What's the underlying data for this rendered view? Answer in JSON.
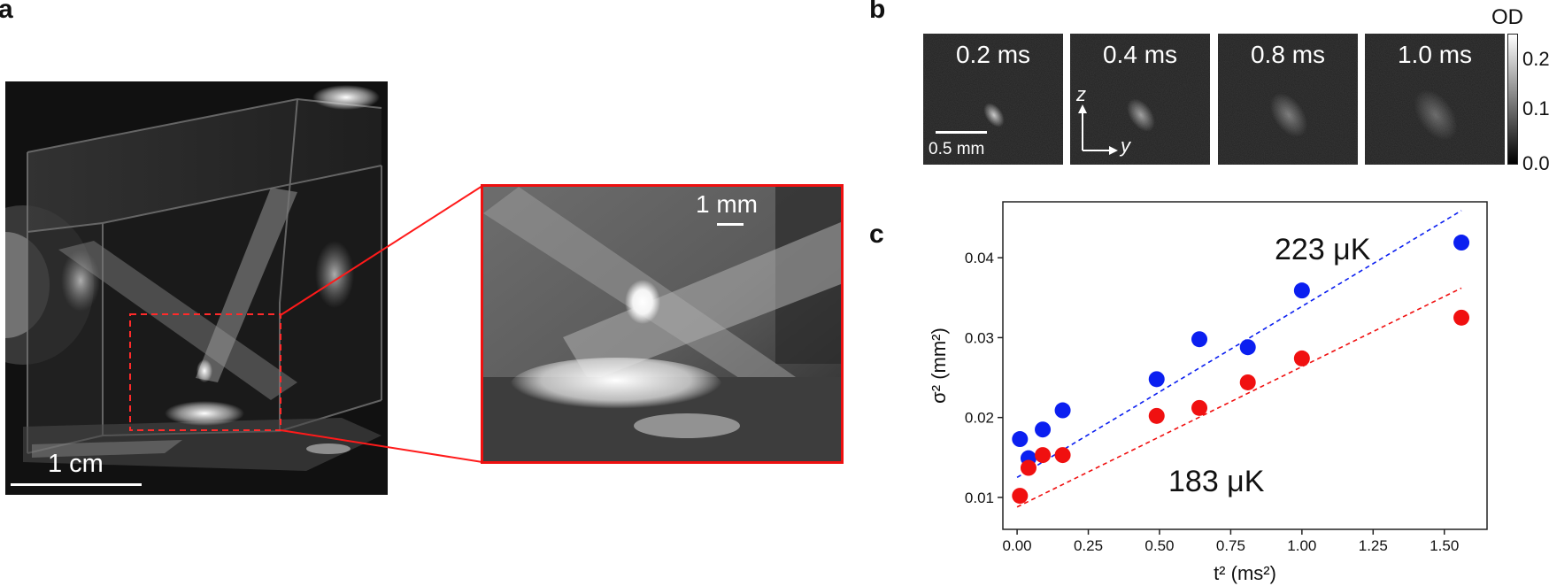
{
  "panel_a": {
    "letter": "a",
    "scalebar_main": "1 cm",
    "scalebar_inset": "1 mm"
  },
  "panel_b": {
    "letter": "b",
    "frames": [
      {
        "label": "0.2 ms",
        "cloud_brightness": 0.75,
        "cloud_size": 0.55
      },
      {
        "label": "0.4 ms",
        "cloud_brightness": 0.55,
        "cloud_size": 0.75
      },
      {
        "label": "0.8 ms",
        "cloud_brightness": 0.38,
        "cloud_size": 1.0
      },
      {
        "label": "1.0 ms",
        "cloud_brightness": 0.3,
        "cloud_size": 1.15
      }
    ],
    "scalebar": "0.5 mm",
    "axis_vertical": "z",
    "axis_horizontal": "y",
    "colorbar": {
      "title": "OD",
      "ticks": [
        "0.2",
        "0.1",
        "0.0"
      ]
    }
  },
  "panel_c": {
    "letter": "c"
  },
  "chart_data": {
    "type": "scatter",
    "xlabel": "t² (ms²)",
    "ylabel": "σ² (mm²)",
    "xlim": [
      -0.05,
      1.65
    ],
    "ylim": [
      0.006,
      0.047
    ],
    "xticks": [
      "0.00",
      "0.25",
      "0.50",
      "0.75",
      "1.00",
      "1.25",
      "1.50"
    ],
    "yticks": [
      "0.01",
      "0.02",
      "0.03",
      "0.04"
    ],
    "series": [
      {
        "label": "223 μK",
        "color": "#0b1ff0",
        "x": [
          0.01,
          0.04,
          0.09,
          0.16,
          0.49,
          0.64,
          0.81,
          1.0,
          1.56
        ],
        "y": [
          0.0173,
          0.0149,
          0.0185,
          0.0209,
          0.0248,
          0.0298,
          0.0288,
          0.0359,
          0.0419
        ],
        "fit": {
          "x": [
            0.0,
            1.56
          ],
          "y": [
            0.0125,
            0.0459
          ]
        }
      },
      {
        "label": "183 μK",
        "color": "#f01010",
        "x": [
          0.01,
          0.04,
          0.09,
          0.16,
          0.49,
          0.64,
          0.81,
          1.0,
          1.56
        ],
        "y": [
          0.0102,
          0.0137,
          0.0153,
          0.0153,
          0.0202,
          0.0212,
          0.0244,
          0.0274,
          0.0325
        ],
        "fit": {
          "x": [
            0.0,
            1.56
          ],
          "y": [
            0.0088,
            0.0362
          ]
        }
      }
    ]
  }
}
